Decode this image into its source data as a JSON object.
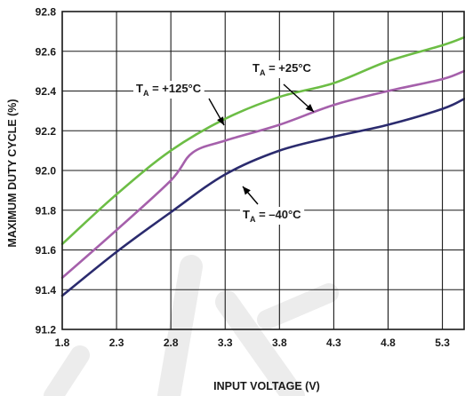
{
  "chart_data": {
    "type": "line",
    "xlabel": "INPUT VOLTAGE (V)",
    "ylabel": "MAXIMUM DUTY CYCLE (%)",
    "xlim": [
      1.8,
      5.5
    ],
    "ylim": [
      91.2,
      92.8
    ],
    "x_ticks": [
      "1.8",
      "2.3",
      "2.8",
      "3.3",
      "3.8",
      "4.3",
      "4.8",
      "5.3"
    ],
    "y_ticks": [
      "91.2",
      "91.4",
      "91.6",
      "91.8",
      "92.0",
      "92.2",
      "92.4",
      "92.6",
      "92.8"
    ],
    "grid": true,
    "series": [
      {
        "name": "T_A = +125°C",
        "color": "#6cbd45",
        "x": [
          1.8,
          2.3,
          2.8,
          3.3,
          3.8,
          4.3,
          4.8,
          5.3,
          5.5
        ],
        "y": [
          91.63,
          91.88,
          92.1,
          92.26,
          92.37,
          92.44,
          92.55,
          92.63,
          92.67
        ]
      },
      {
        "name": "T_A = +25°C",
        "color": "#a560ab",
        "x": [
          1.8,
          2.3,
          2.8,
          3.0,
          3.3,
          3.8,
          4.3,
          4.8,
          5.3,
          5.5
        ],
        "y": [
          91.46,
          91.7,
          91.95,
          92.09,
          92.15,
          92.23,
          92.33,
          92.4,
          92.46,
          92.5
        ]
      },
      {
        "name": "T_A = –40°C",
        "color": "#2b2b6e",
        "x": [
          1.8,
          2.3,
          2.8,
          3.3,
          3.8,
          4.3,
          4.8,
          5.3,
          5.5
        ],
        "y": [
          91.37,
          91.59,
          91.79,
          91.98,
          92.1,
          92.17,
          92.23,
          92.31,
          92.36
        ]
      }
    ],
    "annotations": [
      {
        "main": "T",
        "sub": "A",
        "rest": " = +125°C"
      },
      {
        "main": "T",
        "sub": "A",
        "rest": " = +25°C"
      },
      {
        "main": "T",
        "sub": "A",
        "rest": " = –40°C"
      }
    ]
  }
}
